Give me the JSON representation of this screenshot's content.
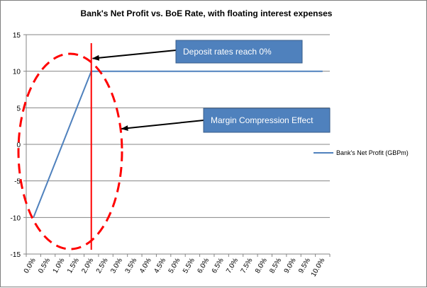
{
  "chart_data": {
    "type": "line",
    "title": "Bank's Net Profit  vs. BoE Rate, with floating interest expenses",
    "xlabel": "",
    "ylabel": "",
    "categories": [
      "0.0%",
      "0.5%",
      "1.0%",
      "1.5%",
      "2.0%",
      "2.5%",
      "3.0%",
      "3.5%",
      "4.0%",
      "4.5%",
      "5.0%",
      "5.5%",
      "6.0%",
      "6.5%",
      "7.0%",
      "7.5%",
      "8.0%",
      "8.5%",
      "9.0%",
      "9.5%",
      "10.0%"
    ],
    "series": [
      {
        "name": "Bank's Net Profit (GBPm)",
        "color": "#4f81bd",
        "values": [
          -10,
          -5,
          0,
          5,
          10,
          10,
          10,
          10,
          10,
          10,
          10,
          10,
          10,
          10,
          10,
          10,
          10,
          10,
          10,
          10,
          10
        ]
      }
    ],
    "y_ticks": [
      15,
      10,
      5,
      0,
      -5,
      -10,
      -15
    ],
    "ylim": [
      -15,
      15
    ],
    "grid": "horizontal",
    "legend_position": "right",
    "annotations": [
      {
        "text": "Deposit rates reach 0%",
        "points_to_x": "2.0%",
        "points_to_y": 10
      },
      {
        "text": "Margin Compression Effect",
        "points_to_x": "3.0%",
        "points_to_y": 2
      }
    ],
    "marker_line_x": "2.0%",
    "marker_line_color": "#ff0000",
    "ellipse_color": "#ff0000",
    "callout_fill": "#4f81bd",
    "callout_border": "#385d8a"
  }
}
